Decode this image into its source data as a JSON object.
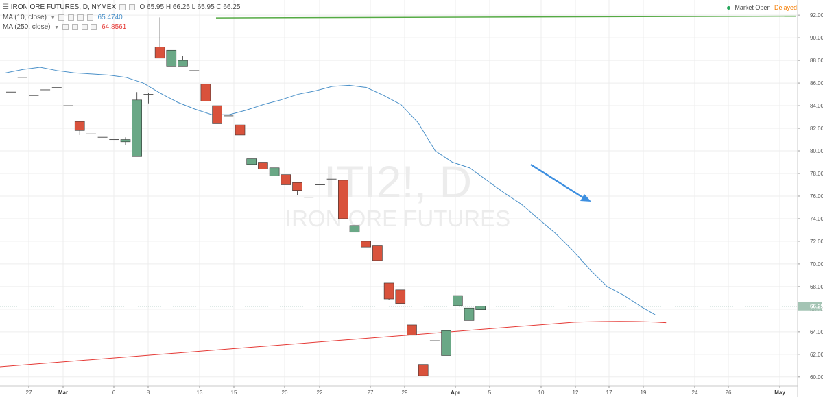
{
  "header": {
    "symbol_title": "IRON ORE FUTURES, D, NYMEX",
    "ohlc": {
      "o": "O 65.95",
      "h": "H 66.25",
      "l": "L 65.95",
      "c": "C 66.25"
    },
    "indicators": [
      {
        "label": "MA (10, close)",
        "value": "65.4740",
        "color": "#4a90c8"
      },
      {
        "label": "MA (250, close)",
        "value": "64.8561",
        "color": "#e53935"
      }
    ],
    "market_status": "Market Open",
    "delayed": "Delayed"
  },
  "watermark": {
    "symbol": "ITI2!, D",
    "name": "IRON ORE FUTURES"
  },
  "colors": {
    "up": "#6aa886",
    "down": "#d9523c",
    "ma10": "#4a90c8",
    "ma250": "#e53935",
    "hline": "#55aa44",
    "arrow": "#3d8fe0",
    "price_tag": "#a4c4b4"
  },
  "chart_data": {
    "type": "candlestick",
    "x_ticks": [
      "27",
      "Mar",
      "6",
      "8",
      "13",
      "15",
      "20",
      "22",
      "27",
      "29",
      "Apr",
      "5",
      "10",
      "12",
      "17",
      "19",
      "24",
      "26",
      "May"
    ],
    "y_ticks": [
      "60.00",
      "62.00",
      "64.00",
      "66.00",
      "68.00",
      "70.00",
      "72.00",
      "74.00",
      "76.00",
      "78.00",
      "80.00",
      "82.00",
      "84.00",
      "86.00",
      "88.00",
      "90.00",
      "92.00"
    ],
    "y_range": [
      59.2,
      93.1
    ],
    "last_price": "66.25",
    "horizontal_line": 91.85,
    "candles": [
      {
        "o": 85.2,
        "h": 85.2,
        "l": 85.2,
        "c": 85.2
      },
      {
        "o": 86.5,
        "h": 86.5,
        "l": 86.5,
        "c": 86.5
      },
      {
        "o": 84.9,
        "h": 84.9,
        "l": 84.9,
        "c": 84.9
      },
      {
        "o": 85.4,
        "h": 85.4,
        "l": 85.4,
        "c": 85.4
      },
      {
        "o": 85.6,
        "h": 85.6,
        "l": 85.6,
        "c": 85.6
      },
      {
        "o": 84.0,
        "h": 84.0,
        "l": 84.0,
        "c": 84.0
      },
      {
        "o": 82.6,
        "h": 82.6,
        "l": 81.4,
        "c": 81.8
      },
      {
        "o": 81.5,
        "h": 81.5,
        "l": 81.5,
        "c": 81.5
      },
      {
        "o": 81.2,
        "h": 81.2,
        "l": 81.2,
        "c": 81.2
      },
      {
        "o": 81.0,
        "h": 81.0,
        "l": 81.0,
        "c": 81.0
      },
      {
        "o": 80.8,
        "h": 81.2,
        "l": 80.5,
        "c": 81.0
      },
      {
        "o": 79.5,
        "h": 85.2,
        "l": 79.5,
        "c": 84.5
      },
      {
        "o": 85.0,
        "h": 85.1,
        "l": 84.2,
        "c": 85.0
      },
      {
        "o": 89.2,
        "h": 91.8,
        "l": 88.2,
        "c": 88.2
      },
      {
        "o": 87.5,
        "h": 88.9,
        "l": 87.5,
        "c": 88.9
      },
      {
        "o": 87.5,
        "h": 88.4,
        "l": 87.5,
        "c": 88.0
      },
      {
        "o": 87.1,
        "h": 87.1,
        "l": 87.1,
        "c": 87.1
      },
      {
        "o": 85.9,
        "h": 85.9,
        "l": 84.4,
        "c": 84.4
      },
      {
        "o": 84.0,
        "h": 84.0,
        "l": 82.4,
        "c": 82.4
      },
      {
        "o": 83.1,
        "h": 83.1,
        "l": 83.1,
        "c": 83.1
      },
      {
        "o": 82.3,
        "h": 82.3,
        "l": 81.4,
        "c": 81.4
      },
      {
        "o": 78.8,
        "h": 79.3,
        "l": 78.8,
        "c": 79.3
      },
      {
        "o": 79.0,
        "h": 79.4,
        "l": 78.4,
        "c": 78.4
      },
      {
        "o": 77.8,
        "h": 78.5,
        "l": 77.8,
        "c": 78.5
      },
      {
        "o": 77.9,
        "h": 77.9,
        "l": 77.0,
        "c": 77.0
      },
      {
        "o": 77.2,
        "h": 77.2,
        "l": 76.1,
        "c": 76.5
      },
      {
        "o": 75.9,
        "h": 75.9,
        "l": 75.9,
        "c": 75.9
      },
      {
        "o": 77.0,
        "h": 77.0,
        "l": 77.0,
        "c": 77.0
      },
      {
        "o": 77.5,
        "h": 77.5,
        "l": 77.5,
        "c": 77.5
      },
      {
        "o": 77.4,
        "h": 77.4,
        "l": 74.0,
        "c": 74.0
      },
      {
        "o": 72.8,
        "h": 73.4,
        "l": 72.8,
        "c": 73.4
      },
      {
        "o": 72.0,
        "h": 72.0,
        "l": 71.5,
        "c": 71.5
      },
      {
        "o": 71.6,
        "h": 71.6,
        "l": 70.3,
        "c": 70.3
      },
      {
        "o": 68.3,
        "h": 68.3,
        "l": 66.8,
        "c": 66.9
      },
      {
        "o": 67.7,
        "h": 67.7,
        "l": 66.5,
        "c": 66.5
      },
      {
        "o": 64.6,
        "h": 64.6,
        "l": 63.7,
        "c": 63.7
      },
      {
        "o": 61.1,
        "h": 61.1,
        "l": 60.1,
        "c": 60.1
      },
      {
        "o": 63.2,
        "h": 63.2,
        "l": 63.2,
        "c": 63.2
      },
      {
        "o": 61.9,
        "h": 64.1,
        "l": 61.9,
        "c": 64.1
      },
      {
        "o": 66.3,
        "h": 67.2,
        "l": 66.3,
        "c": 67.2
      },
      {
        "o": 65.0,
        "h": 66.1,
        "l": 65.0,
        "c": 66.1
      },
      {
        "o": 65.95,
        "h": 66.25,
        "l": 65.95,
        "c": 66.25
      }
    ],
    "ma10": [
      86.9,
      87.2,
      87.4,
      87.1,
      86.9,
      86.8,
      86.7,
      86.5,
      86.0,
      85.1,
      84.3,
      83.7,
      83.2,
      83.2,
      83.6,
      84.1,
      84.5,
      85.0,
      85.3,
      85.7,
      85.8,
      85.6,
      84.9,
      84.1,
      82.5,
      80.0,
      79.0,
      78.5,
      77.4,
      76.3,
      75.3,
      74.0,
      72.7,
      71.2,
      69.5,
      68.0,
      67.2,
      66.2,
      65.5
    ],
    "ma10_x": [
      0.5,
      2,
      3.5,
      5,
      6.5,
      8,
      9.5,
      11,
      12.5,
      14,
      15.5,
      17,
      18.5,
      20,
      21.5,
      23,
      24.5,
      26,
      27.5,
      29,
      30.5,
      32,
      33.5,
      35,
      36.5,
      38,
      39.5,
      41,
      42.5,
      44,
      45.5,
      47,
      48.5,
      50,
      51.5,
      53,
      54.5,
      56,
      57.2
    ],
    "ma250": [
      60.9,
      65.0
    ],
    "ma250_curve_end": 64.8
  }
}
